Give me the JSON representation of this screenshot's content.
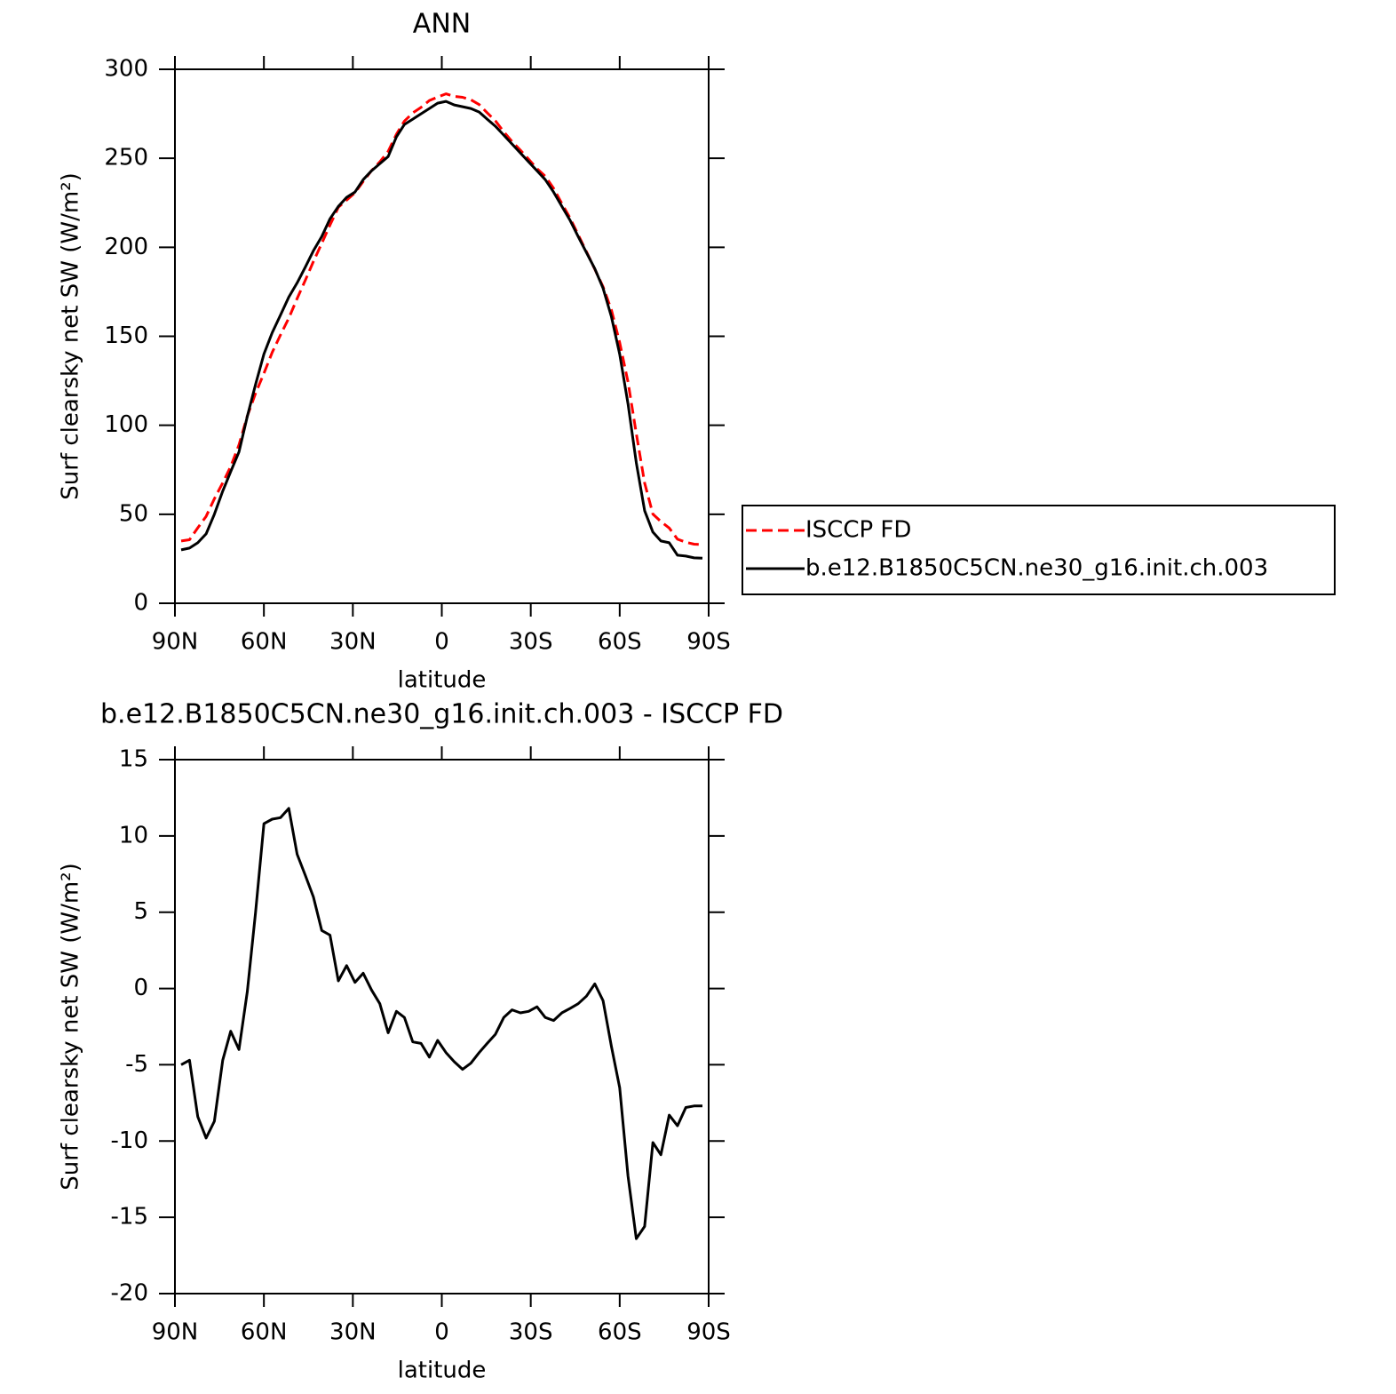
{
  "chart_data": [
    {
      "type": "line",
      "title": "ANN",
      "xlabel": "latitude",
      "ylabel": "Surf clearsky net SW (W/m²)",
      "x": [
        87.9,
        85.1,
        82.3,
        79.5,
        76.7,
        73.9,
        71.2,
        68.4,
        65.6,
        62.8,
        60.0,
        57.2,
        54.4,
        51.6,
        48.8,
        46.0,
        43.3,
        40.5,
        37.7,
        34.9,
        32.1,
        29.3,
        26.5,
        23.7,
        20.9,
        18.1,
        15.3,
        12.6,
        9.8,
        7.0,
        4.2,
        1.4,
        -1.4,
        -4.2,
        -7.0,
        -9.8,
        -12.6,
        -15.3,
        -18.1,
        -20.9,
        -23.7,
        -26.5,
        -29.3,
        -32.1,
        -34.9,
        -37.7,
        -40.5,
        -43.3,
        -46.0,
        -48.8,
        -51.6,
        -54.4,
        -57.2,
        -60.0,
        -62.8,
        -65.6,
        -68.4,
        -71.2,
        -73.9,
        -76.7,
        -79.5,
        -82.3,
        -85.1,
        -87.9
      ],
      "xlim": [
        90,
        -90
      ],
      "xticks": [
        {
          "value": 90,
          "label": "90N"
        },
        {
          "value": 60,
          "label": "60N"
        },
        {
          "value": 30,
          "label": "30N"
        },
        0,
        {
          "value": -30,
          "label": "30S"
        },
        {
          "value": -60,
          "label": "60S"
        },
        {
          "value": -90,
          "label": "90S"
        }
      ],
      "ylim": [
        0,
        300
      ],
      "yticks": [
        0,
        50,
        100,
        150,
        200,
        250,
        300
      ],
      "legend_position": "right",
      "series": [
        {
          "name": "ISCCP FD",
          "color": "#ff0000",
          "dash": true,
          "values": [
            35,
            35.7,
            42.4,
            48.8,
            58.7,
            67.7,
            76.8,
            89,
            105.2,
            118,
            129.2,
            140.9,
            150.8,
            160.2,
            171.2,
            181.6,
            192,
            202.2,
            212.5,
            222.5,
            226.5,
            230.6,
            237,
            243.1,
            248,
            253.9,
            263.5,
            270.9,
            275.5,
            278.6,
            282.5,
            284.4,
            286.2,
            284.8,
            284.3,
            282.9,
            280.2,
            275.6,
            271,
            264.9,
            259.4,
            254.6,
            249.5,
            244.2,
            239.9,
            233.1,
            224.6,
            216.3,
            207,
            197.5,
            187.7,
            177.8,
            164.8,
            146.5,
            124.3,
            95.4,
            67.6,
            50.1,
            45.9,
            42.3,
            36,
            34.3,
            33.2,
            33.0
          ]
        },
        {
          "name": "b.e12.B1850C5CN.ne30_g16.init.ch.003",
          "color": "#000000",
          "dash": false,
          "values": [
            30,
            31,
            34,
            39,
            50,
            63,
            74,
            85,
            105,
            123,
            140,
            152,
            162,
            172,
            180,
            189,
            198,
            206,
            216,
            223,
            228,
            231,
            238,
            243,
            247,
            251,
            262,
            269,
            272,
            275,
            278,
            281,
            282,
            280,
            279,
            278,
            276,
            272,
            268,
            263,
            258,
            253,
            248,
            243,
            238,
            231,
            223,
            215,
            206,
            197,
            188,
            177,
            161,
            140,
            112,
            79,
            52,
            40,
            35,
            34,
            27,
            26.5,
            25.5,
            25.3
          ]
        }
      ]
    },
    {
      "type": "line",
      "title": "b.e12.B1850C5CN.ne30_g16.init.ch.003 - ISCCP FD",
      "xlabel": "latitude",
      "ylabel": "Surf clearsky net SW (W/m²)",
      "x": [
        87.9,
        85.1,
        82.3,
        79.5,
        76.7,
        73.9,
        71.2,
        68.4,
        65.6,
        62.8,
        60.0,
        57.2,
        54.4,
        51.6,
        48.8,
        46.0,
        43.3,
        40.5,
        37.7,
        34.9,
        32.1,
        29.3,
        26.5,
        23.7,
        20.9,
        18.1,
        15.3,
        12.6,
        9.8,
        7.0,
        4.2,
        1.4,
        -1.4,
        -4.2,
        -7.0,
        -9.8,
        -12.6,
        -15.3,
        -18.1,
        -20.9,
        -23.7,
        -26.5,
        -29.3,
        -32.1,
        -34.9,
        -37.7,
        -40.5,
        -43.3,
        -46.0,
        -48.8,
        -51.6,
        -54.4,
        -57.2,
        -60.0,
        -62.8,
        -65.6,
        -68.4,
        -71.2,
        -73.9,
        -76.7,
        -79.5,
        -82.3,
        -85.1,
        -87.9
      ],
      "xlim": [
        90,
        -90
      ],
      "xticks": [
        {
          "value": 90,
          "label": "90N"
        },
        {
          "value": 60,
          "label": "60N"
        },
        {
          "value": 30,
          "label": "30N"
        },
        0,
        {
          "value": -30,
          "label": "30S"
        },
        {
          "value": -60,
          "label": "60S"
        },
        {
          "value": -90,
          "label": "90S"
        }
      ],
      "ylim": [
        -20,
        15
      ],
      "yticks": [
        -20,
        -15,
        -10,
        -5,
        0,
        5,
        10,
        15
      ],
      "color": "#000000",
      "values": [
        -5.0,
        -4.7,
        -8.4,
        -9.8,
        -8.7,
        -4.7,
        -2.8,
        -4.0,
        -0.2,
        5.0,
        10.8,
        11.1,
        11.2,
        11.8,
        8.8,
        7.4,
        6.0,
        3.8,
        3.5,
        0.5,
        1.5,
        0.4,
        1.0,
        -0.1,
        -1.0,
        -2.9,
        -1.5,
        -1.9,
        -3.5,
        -3.6,
        -4.5,
        -3.4,
        -4.2,
        -4.8,
        -5.3,
        -4.9,
        -4.2,
        -3.6,
        -3.0,
        -1.9,
        -1.4,
        -1.6,
        -1.5,
        -1.2,
        -1.9,
        -2.1,
        -1.6,
        -1.3,
        -1.0,
        -0.5,
        0.3,
        -0.8,
        -3.8,
        -6.5,
        -12.3,
        -16.4,
        -15.6,
        -10.1,
        -10.9,
        -8.3,
        -9.0,
        -7.8,
        -7.7,
        -7.7
      ]
    }
  ]
}
